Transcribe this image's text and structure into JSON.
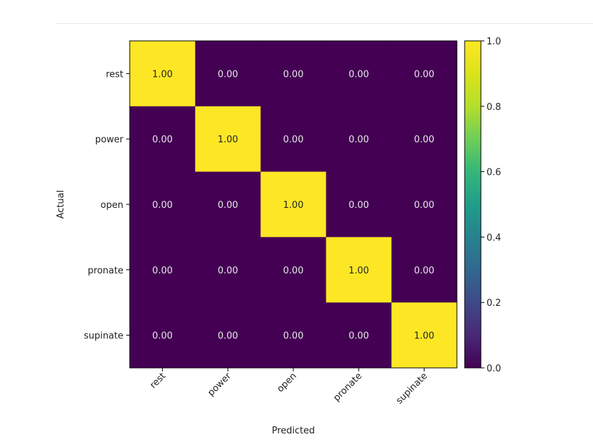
{
  "chart_data": {
    "type": "heatmap",
    "title": "",
    "xlabel": "Predicted",
    "ylabel": "Actual",
    "x_categories": [
      "rest",
      "power",
      "open",
      "pronate",
      "supinate"
    ],
    "y_categories": [
      "rest",
      "power",
      "open",
      "pronate",
      "supinate"
    ],
    "values": [
      [
        1.0,
        0.0,
        0.0,
        0.0,
        0.0
      ],
      [
        0.0,
        1.0,
        0.0,
        0.0,
        0.0
      ],
      [
        0.0,
        0.0,
        1.0,
        0.0,
        0.0
      ],
      [
        0.0,
        0.0,
        0.0,
        1.0,
        0.0
      ],
      [
        0.0,
        0.0,
        0.0,
        0.0,
        1.0
      ]
    ],
    "cell_labels": [
      [
        "1.00",
        "0.00",
        "0.00",
        "0.00",
        "0.00"
      ],
      [
        "0.00",
        "1.00",
        "0.00",
        "0.00",
        "0.00"
      ],
      [
        "0.00",
        "0.00",
        "1.00",
        "0.00",
        "0.00"
      ],
      [
        "0.00",
        "0.00",
        "0.00",
        "1.00",
        "0.00"
      ],
      [
        "0.00",
        "0.00",
        "0.00",
        "0.00",
        "1.00"
      ]
    ],
    "colormap": "viridis",
    "colorbar": {
      "range": [
        0.0,
        1.0
      ],
      "ticks": [
        0.0,
        0.2,
        0.4,
        0.6,
        0.8,
        1.0
      ],
      "tick_labels": [
        "0.0",
        "0.2",
        "0.4",
        "0.6",
        "0.8",
        "1.0"
      ]
    },
    "colors": {
      "low": "#440154",
      "high": "#fde725",
      "label_on_low": "#e8e8e8",
      "label_on_high": "#222222"
    }
  }
}
